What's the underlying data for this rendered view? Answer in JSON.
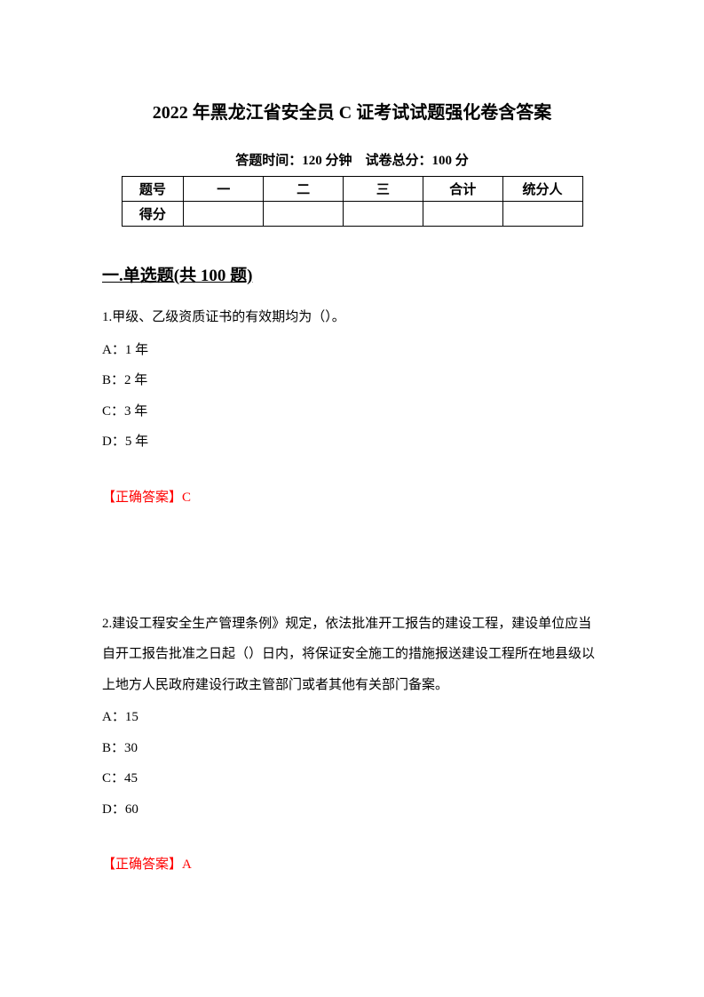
{
  "title": "2022 年黑龙江省安全员 C 证考试试题强化卷含答案",
  "examInfo": "答题时间：120 分钟    试卷总分：100 分",
  "scoreTable": {
    "headers": [
      "题号",
      "一",
      "二",
      "三",
      "合计",
      "统分人"
    ],
    "rowLabel": "得分"
  },
  "sectionTitle": "一.单选题(共 100 题)",
  "q1": {
    "text": "1.甲级、乙级资质证书的有效期均为（）。",
    "optA": "A：1 年",
    "optB": "B：2 年",
    "optC": "C：3 年",
    "optD": "D：5 年",
    "answer": "【正确答案】C"
  },
  "q2": {
    "text": "2.建设工程安全生产管理条例》规定，依法批准开工报告的建设工程，建设单位应当自开工报告批准之日起（）日内，将保证安全施工的措施报送建设工程所在地县级以上地方人民政府建设行政主管部门或者其他有关部门备案。",
    "optA": "A：15",
    "optB": "B：30",
    "optC": "C：45",
    "optD": "D：60",
    "answer": "【正确答案】A"
  }
}
